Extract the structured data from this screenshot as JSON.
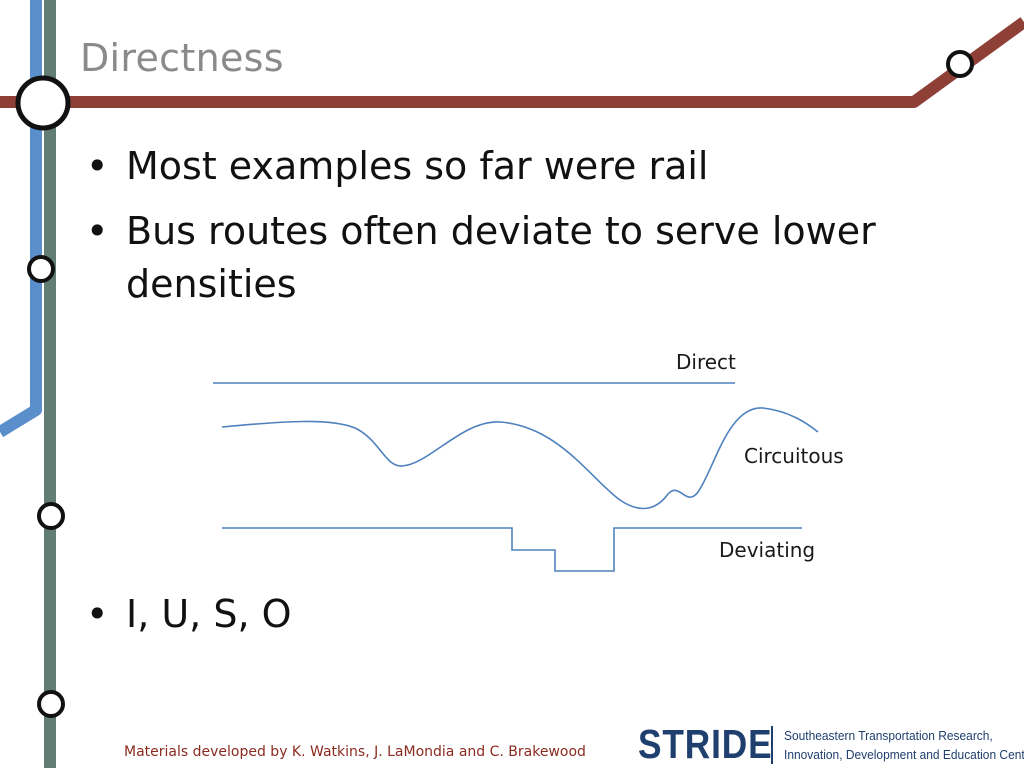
{
  "slide": {
    "title": "Directness",
    "bullets": [
      "Most examples so far were rail",
      "Bus routes often deviate to serve lower densities"
    ],
    "last_bullet": "I, U, S, O",
    "bullet_symbol": "•"
  },
  "diagram": {
    "labels": {
      "direct": "Direct",
      "circuitous": "Circuitous",
      "deviating": "Deviating"
    },
    "line_color": "#4f81bd"
  },
  "footer": {
    "credit": "Materials developed by K. Watkins, J. LaMondia and C. Brakewood",
    "logo": {
      "name": "STRIDE",
      "subtitle_line1": "Southeastern Transportation Research,",
      "subtitle_line2": "Innovation, Development and Education Center"
    }
  },
  "theme": {
    "blue_line": "#5b8fcc",
    "slate_line": "#627d74",
    "red_line": "#8e4037",
    "credit_color": "#8a2b1f",
    "logo_color": "#1f3f6e"
  }
}
